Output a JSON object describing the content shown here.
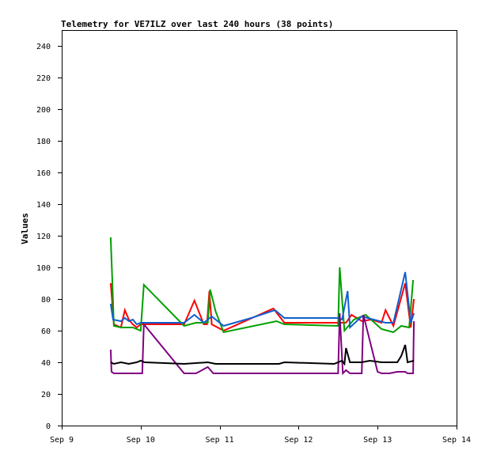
{
  "chart_data": {
    "type": "line",
    "title": "Telemetry for VE7ILZ over last 240 hours (38 points)",
    "xlabel": "",
    "ylabel": "Values",
    "xlim": [
      "Sep 9",
      "Sep 14"
    ],
    "ylim": [
      0,
      250
    ],
    "x_ticks": [
      "Sep 9",
      "Sep 10",
      "Sep 11",
      "Sep 12",
      "Sep 13",
      "Sep 14"
    ],
    "y_ticks": [
      0,
      20,
      40,
      60,
      80,
      100,
      120,
      140,
      160,
      180,
      200,
      220,
      240
    ],
    "grid": false,
    "legend": "none",
    "series": [
      {
        "color": "#ff0000",
        "points": [
          [
            9.62,
            90
          ],
          [
            9.63,
            84
          ],
          [
            9.66,
            64
          ],
          [
            9.75,
            62
          ],
          [
            9.8,
            73
          ],
          [
            9.85,
            67
          ],
          [
            9.9,
            64
          ],
          [
            9.95,
            62
          ],
          [
            10.0,
            64
          ],
          [
            10.05,
            64
          ],
          [
            10.55,
            64
          ],
          [
            10.68,
            79
          ],
          [
            10.8,
            64
          ],
          [
            10.84,
            64
          ],
          [
            10.87,
            85
          ],
          [
            10.9,
            64
          ],
          [
            11.05,
            60
          ],
          [
            11.68,
            74
          ],
          [
            11.82,
            65
          ],
          [
            12.5,
            65
          ],
          [
            12.6,
            65
          ],
          [
            12.67,
            70
          ],
          [
            12.8,
            66
          ],
          [
            12.92,
            67
          ],
          [
            13.05,
            65
          ],
          [
            13.1,
            73
          ],
          [
            13.2,
            63
          ],
          [
            13.35,
            90
          ],
          [
            13.42,
            62
          ],
          [
            13.46,
            80
          ]
        ]
      },
      {
        "color": "#00a000",
        "points": [
          [
            9.62,
            119
          ],
          [
            9.64,
            92
          ],
          [
            9.66,
            63
          ],
          [
            9.75,
            62
          ],
          [
            9.9,
            62
          ],
          [
            10.0,
            60
          ],
          [
            10.04,
            89
          ],
          [
            10.55,
            63
          ],
          [
            10.7,
            65
          ],
          [
            10.85,
            65
          ],
          [
            10.88,
            86
          ],
          [
            10.95,
            72
          ],
          [
            11.05,
            59
          ],
          [
            11.72,
            66
          ],
          [
            11.82,
            64
          ],
          [
            12.5,
            63
          ],
          [
            12.52,
            100
          ],
          [
            12.58,
            60
          ],
          [
            12.7,
            67
          ],
          [
            12.85,
            70
          ],
          [
            13.05,
            61
          ],
          [
            13.2,
            59
          ],
          [
            13.3,
            63
          ],
          [
            13.4,
            62
          ],
          [
            13.45,
            92
          ]
        ]
      },
      {
        "color": "#1060d0",
        "points": [
          [
            9.62,
            77
          ],
          [
            9.65,
            67
          ],
          [
            9.75,
            66
          ],
          [
            9.8,
            68
          ],
          [
            9.85,
            66
          ],
          [
            9.9,
            67
          ],
          [
            9.95,
            64
          ],
          [
            10.0,
            65
          ],
          [
            10.55,
            65
          ],
          [
            10.68,
            70
          ],
          [
            10.8,
            65
          ],
          [
            10.9,
            69
          ],
          [
            11.05,
            63
          ],
          [
            11.4,
            68
          ],
          [
            11.7,
            73
          ],
          [
            11.82,
            68
          ],
          [
            12.5,
            68
          ],
          [
            12.55,
            67
          ],
          [
            12.62,
            85
          ],
          [
            12.65,
            62
          ],
          [
            12.8,
            69
          ],
          [
            12.95,
            67
          ],
          [
            13.1,
            65
          ],
          [
            13.2,
            65
          ],
          [
            13.35,
            97
          ],
          [
            13.42,
            65
          ],
          [
            13.46,
            71
          ]
        ]
      },
      {
        "color": "#800080",
        "points": [
          [
            9.62,
            48
          ],
          [
            9.63,
            34
          ],
          [
            9.66,
            33
          ],
          [
            9.95,
            33
          ],
          [
            10.02,
            33
          ],
          [
            10.04,
            64
          ],
          [
            10.55,
            33
          ],
          [
            10.7,
            33
          ],
          [
            10.85,
            37
          ],
          [
            10.92,
            33
          ],
          [
            12.5,
            33
          ],
          [
            12.52,
            71
          ],
          [
            12.56,
            33
          ],
          [
            12.6,
            35
          ],
          [
            12.65,
            33
          ],
          [
            12.8,
            33
          ],
          [
            12.82,
            70
          ],
          [
            13.0,
            34
          ],
          [
            13.05,
            33
          ],
          [
            13.15,
            33
          ],
          [
            13.25,
            34
          ],
          [
            13.35,
            34
          ],
          [
            13.38,
            33
          ],
          [
            13.45,
            33
          ],
          [
            13.46,
            66
          ]
        ]
      },
      {
        "color": "#000000",
        "points": [
          [
            9.62,
            40
          ],
          [
            9.66,
            39
          ],
          [
            9.75,
            40
          ],
          [
            9.85,
            39
          ],
          [
            9.95,
            40
          ],
          [
            10.0,
            41
          ],
          [
            10.05,
            40
          ],
          [
            10.55,
            39
          ],
          [
            10.85,
            40
          ],
          [
            10.95,
            39
          ],
          [
            11.75,
            39
          ],
          [
            11.82,
            40
          ],
          [
            12.45,
            39
          ],
          [
            12.55,
            41
          ],
          [
            12.58,
            39
          ],
          [
            12.6,
            49
          ],
          [
            12.65,
            40
          ],
          [
            12.8,
            40
          ],
          [
            12.9,
            41
          ],
          [
            13.05,
            40
          ],
          [
            13.25,
            40
          ],
          [
            13.3,
            44
          ],
          [
            13.35,
            51
          ],
          [
            13.38,
            40
          ],
          [
            13.46,
            41
          ]
        ]
      }
    ]
  }
}
